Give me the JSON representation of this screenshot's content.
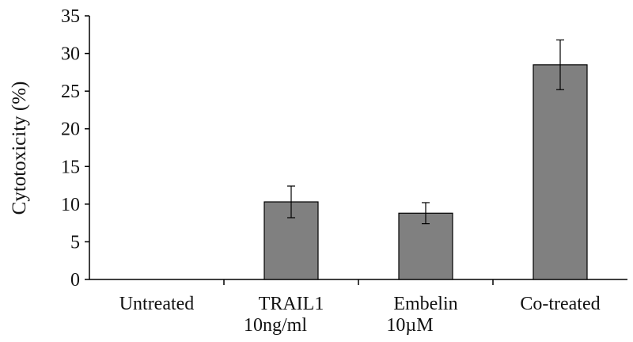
{
  "chart_data": {
    "type": "bar",
    "title": "",
    "xlabel": "",
    "ylabel": "Cytotoxicity (%)",
    "ylim": [
      0,
      35
    ],
    "yticks": [
      0,
      5,
      10,
      15,
      20,
      25,
      30,
      35
    ],
    "grid": false,
    "categories": [
      {
        "line1": "Untreated",
        "line2": ""
      },
      {
        "line1": "TRAIL1",
        "line2": "10ng/ml"
      },
      {
        "line1": "Embelin",
        "line2": "10µM"
      },
      {
        "line1": "Co-treated",
        "line2": ""
      }
    ],
    "values": [
      0,
      10.3,
      8.8,
      28.5
    ],
    "errors": [
      0,
      2.1,
      1.4,
      3.3
    ],
    "bar_color": "#808080"
  }
}
